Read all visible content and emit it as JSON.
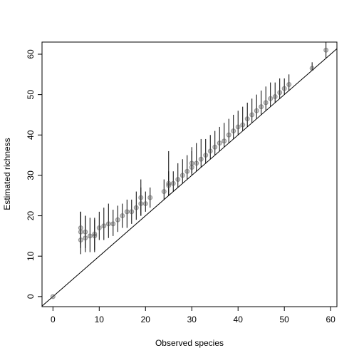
{
  "chart_data": {
    "type": "scatter",
    "xlabel": "Observed species",
    "ylabel": "Estimated richness",
    "x": [
      0,
      6,
      6,
      6,
      7,
      7,
      8,
      9,
      9,
      10,
      11,
      12,
      13,
      14,
      15,
      16,
      17,
      18,
      19,
      19,
      20,
      21,
      24,
      25,
      25,
      26,
      27,
      28,
      29,
      30,
      30,
      31,
      32,
      33,
      34,
      35,
      36,
      37,
      38,
      39,
      40,
      41,
      42,
      43,
      44,
      45,
      46,
      47,
      48,
      49,
      50,
      51,
      56,
      59
    ],
    "values": [
      0,
      14,
      16,
      17,
      14.5,
      16,
      15,
      15,
      15.5,
      17,
      17.5,
      18,
      18,
      19,
      20,
      21,
      21,
      22,
      24.5,
      23,
      23,
      24.5,
      26,
      28,
      27.5,
      28,
      29,
      30,
      31,
      32,
      33,
      33,
      34,
      35,
      36,
      37,
      38,
      38.5,
      40,
      41,
      42,
      42.5,
      44,
      45,
      46,
      47,
      48,
      49,
      49.5,
      50.5,
      51.5,
      52.5,
      56.5,
      61
    ],
    "lower": [
      0,
      10.5,
      12,
      13,
      11,
      12,
      11,
      11,
      11.5,
      14,
      14,
      14.5,
      15,
      16,
      17,
      17,
      18,
      19,
      20,
      20,
      21,
      22,
      24,
      25,
      25,
      26,
      27,
      28,
      29,
      30,
      30.5,
      31,
      32,
      33,
      34,
      35,
      36,
      37,
      38,
      39,
      40,
      41,
      42,
      43,
      44,
      45,
      46,
      47,
      48,
      49,
      50,
      51,
      56,
      59
    ],
    "upper": [
      0,
      21,
      21,
      21,
      20,
      20,
      19.5,
      19,
      19.5,
      21,
      22,
      23,
      21.5,
      22.5,
      23,
      24,
      24,
      26,
      29,
      27,
      26,
      27,
      29,
      36,
      31,
      31,
      33,
      34,
      35,
      36,
      37,
      38,
      39,
      39,
      40,
      41,
      42,
      43,
      44,
      45,
      46,
      47,
      48,
      49,
      50,
      51,
      52,
      53,
      53,
      54,
      54,
      55,
      58,
      63
    ],
    "xlim": [
      -2.36,
      61.36
    ],
    "ylim": [
      -2.5,
      63.0
    ],
    "xticks": [
      0,
      10,
      20,
      30,
      40,
      50,
      60
    ],
    "yticks": [
      0,
      10,
      20,
      30,
      40,
      50,
      60
    ]
  }
}
